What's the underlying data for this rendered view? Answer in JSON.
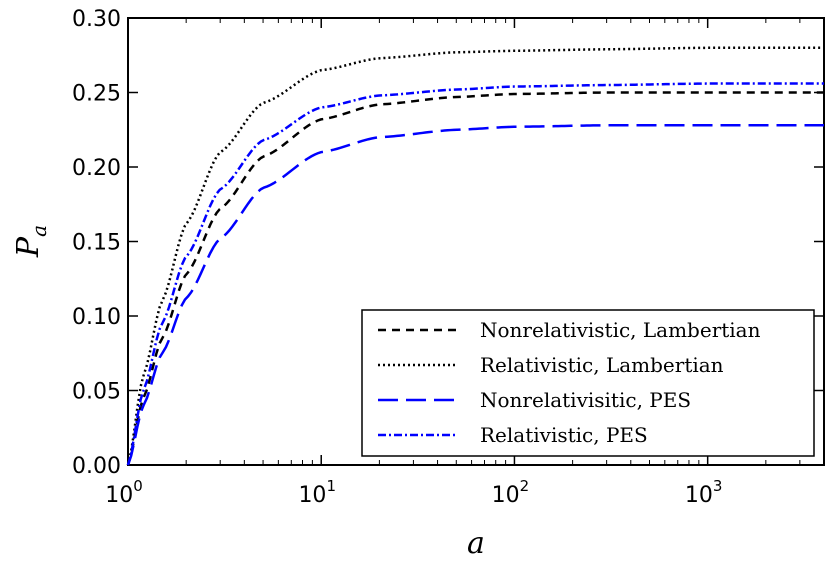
{
  "chart_data": {
    "type": "line",
    "xscale": "log",
    "xlim": [
      1,
      4000
    ],
    "ylim": [
      0,
      0.3
    ],
    "xlabel": "a",
    "ylabel_base": "P",
    "ylabel_sub": "a",
    "yticks": [
      {
        "value": 0.0,
        "label": "0.00"
      },
      {
        "value": 0.05,
        "label": "0.05"
      },
      {
        "value": 0.1,
        "label": "0.10"
      },
      {
        "value": 0.15,
        "label": "0.15"
      },
      {
        "value": 0.2,
        "label": "0.20"
      },
      {
        "value": 0.25,
        "label": "0.25"
      },
      {
        "value": 0.3,
        "label": "0.30"
      }
    ],
    "xticks": [
      {
        "value": 1,
        "base": "10",
        "exp": "0"
      },
      {
        "value": 10,
        "base": "10",
        "exp": "1"
      },
      {
        "value": 100,
        "base": "10",
        "exp": "2"
      },
      {
        "value": 1000,
        "base": "10",
        "exp": "3"
      }
    ],
    "legend_position": "lower-right",
    "series": [
      {
        "name": "Nonrelativistic, Lambertian",
        "color": "#000000",
        "dash": "8,6",
        "x": [
          1,
          1.2,
          1.5,
          2,
          3,
          5,
          10,
          20,
          50,
          100,
          300,
          1000,
          4000
        ],
        "y": [
          0,
          0.045,
          0.085,
          0.128,
          0.172,
          0.207,
          0.232,
          0.242,
          0.247,
          0.249,
          0.25,
          0.25,
          0.25
        ]
      },
      {
        "name": "Relativistic, Lambertian",
        "color": "#000000",
        "dash": "2,3",
        "x": [
          1,
          1.2,
          1.5,
          2,
          3,
          5,
          10,
          20,
          50,
          100,
          300,
          1000,
          4000
        ],
        "y": [
          0,
          0.06,
          0.11,
          0.162,
          0.21,
          0.243,
          0.265,
          0.273,
          0.277,
          0.278,
          0.279,
          0.28,
          0.28
        ]
      },
      {
        "name": "Nonrelativisitic, PES",
        "color": "#0000ff",
        "dash": "20,8",
        "x": [
          1,
          1.2,
          1.5,
          2,
          3,
          5,
          10,
          20,
          50,
          100,
          300,
          1000,
          4000
        ],
        "y": [
          0,
          0.04,
          0.075,
          0.112,
          0.152,
          0.186,
          0.21,
          0.22,
          0.225,
          0.227,
          0.228,
          0.228,
          0.228
        ]
      },
      {
        "name": "Relativistic, PES",
        "color": "#0000ff",
        "dash": "8,3,2,3",
        "x": [
          1,
          1.2,
          1.5,
          2,
          3,
          5,
          10,
          20,
          50,
          100,
          300,
          1000,
          4000
        ],
        "y": [
          0,
          0.05,
          0.095,
          0.14,
          0.185,
          0.218,
          0.24,
          0.248,
          0.252,
          0.254,
          0.255,
          0.256,
          0.256
        ]
      }
    ]
  }
}
